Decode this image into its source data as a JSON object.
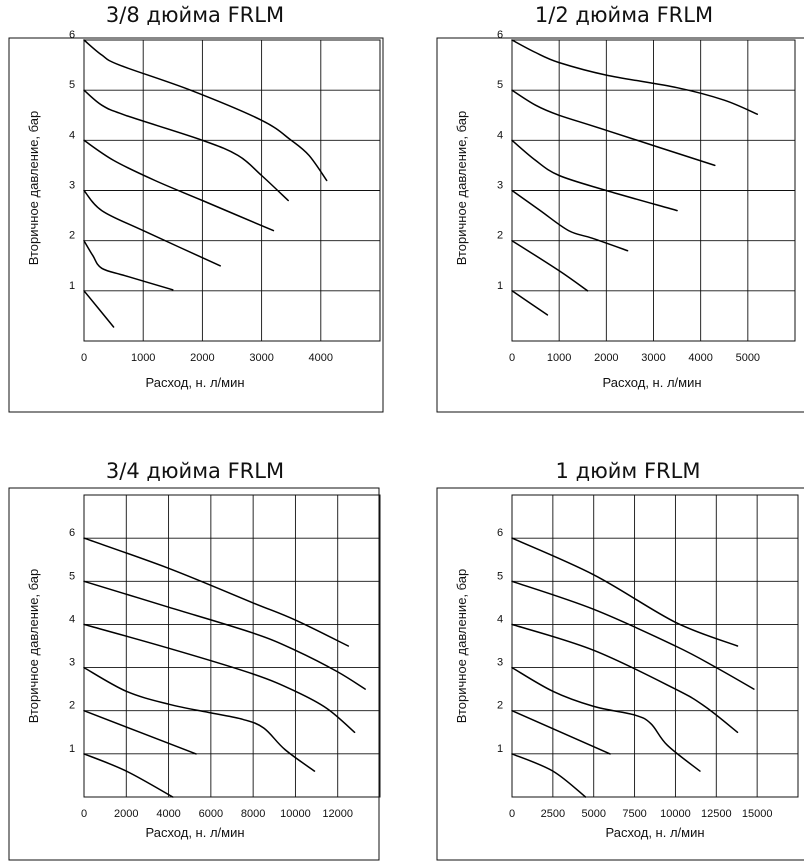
{
  "chart_data": [
    {
      "type": "line",
      "title": "3/8 дюйма FRLM",
      "xlabel": "Расход, н. л/мин",
      "ylabel": "Вторичное давление, бар",
      "xlim": [
        0,
        5000
      ],
      "ylim": [
        0,
        6
      ],
      "x_ticks": [
        0,
        1000,
        2000,
        3000,
        4000
      ],
      "y_ticks": [
        1,
        2,
        3,
        4,
        5,
        6
      ],
      "grid": true,
      "series": [
        {
          "points": [
            [
              0,
              1.0
            ],
            [
              500,
              0.28
            ]
          ]
        },
        {
          "points": [
            [
              0,
              2.0
            ],
            [
              150,
              1.7
            ],
            [
              300,
              1.45
            ],
            [
              700,
              1.3
            ],
            [
              1500,
              1.02
            ]
          ]
        },
        {
          "points": [
            [
              0,
              3.0
            ],
            [
              300,
              2.6
            ],
            [
              1000,
              2.2
            ],
            [
              2300,
              1.5
            ]
          ]
        },
        {
          "points": [
            [
              0,
              4.0
            ],
            [
              500,
              3.6
            ],
            [
              1200,
              3.2
            ],
            [
              2000,
              2.8
            ],
            [
              3200,
              2.2
            ]
          ]
        },
        {
          "points": [
            [
              0,
              5.0
            ],
            [
              300,
              4.7
            ],
            [
              700,
              4.5
            ],
            [
              2000,
              4.0
            ],
            [
              2600,
              3.7
            ],
            [
              3000,
              3.3
            ],
            [
              3450,
              2.8
            ]
          ]
        },
        {
          "points": [
            [
              0,
              6.0
            ],
            [
              300,
              5.7
            ],
            [
              600,
              5.5
            ],
            [
              1800,
              5.0
            ],
            [
              3000,
              4.4
            ],
            [
              3500,
              4.0
            ],
            [
              3800,
              3.7
            ],
            [
              4100,
              3.2
            ]
          ]
        }
      ]
    },
    {
      "type": "line",
      "title": "1/2 дюйма FRLM",
      "xlabel": "Расход, н. л/мин",
      "ylabel": "Вторичное давление, бар",
      "xlim": [
        0,
        6000
      ],
      "ylim": [
        0,
        6
      ],
      "x_ticks": [
        0,
        1000,
        2000,
        3000,
        4000,
        5000
      ],
      "y_ticks": [
        1,
        2,
        3,
        4,
        5,
        6
      ],
      "grid": true,
      "series": [
        {
          "points": [
            [
              0,
              1.0
            ],
            [
              750,
              0.52
            ]
          ]
        },
        {
          "points": [
            [
              0,
              2.0
            ],
            [
              1000,
              1.4
            ],
            [
              1600,
              1.0
            ]
          ]
        },
        {
          "points": [
            [
              0,
              3.0
            ],
            [
              600,
              2.6
            ],
            [
              1200,
              2.2
            ],
            [
              1700,
              2.05
            ],
            [
              2450,
              1.8
            ]
          ]
        },
        {
          "points": [
            [
              0,
              4.0
            ],
            [
              500,
              3.6
            ],
            [
              1000,
              3.3
            ],
            [
              2000,
              3.0
            ],
            [
              3500,
              2.6
            ]
          ]
        },
        {
          "points": [
            [
              0,
              5.0
            ],
            [
              500,
              4.7
            ],
            [
              1000,
              4.5
            ],
            [
              2000,
              4.2
            ],
            [
              4300,
              3.5
            ]
          ]
        },
        {
          "points": [
            [
              0,
              6.0
            ],
            [
              500,
              5.75
            ],
            [
              1000,
              5.55
            ],
            [
              2000,
              5.3
            ],
            [
              3500,
              5.05
            ],
            [
              4500,
              4.8
            ],
            [
              5200,
              4.52
            ]
          ]
        }
      ]
    },
    {
      "type": "line",
      "title": "3/4 дюйма FRLM",
      "xlabel": "Расход, н. л/мин",
      "ylabel": "Вторичное давление, бар",
      "xlim": [
        0,
        14000
      ],
      "ylim": [
        0,
        7
      ],
      "x_ticks": [
        0,
        2000,
        4000,
        6000,
        8000,
        10000,
        12000
      ],
      "y_ticks": [
        1,
        2,
        3,
        4,
        5,
        6
      ],
      "grid": true,
      "series": [
        {
          "points": [
            [
              0,
              1.0
            ],
            [
              2000,
              0.6
            ],
            [
              4200,
              0.0
            ]
          ]
        },
        {
          "points": [
            [
              0,
              2.0
            ],
            [
              5300,
              1.0
            ]
          ]
        },
        {
          "points": [
            [
              0,
              3.0
            ],
            [
              2000,
              2.45
            ],
            [
              4000,
              2.15
            ],
            [
              6000,
              1.95
            ],
            [
              7500,
              1.8
            ],
            [
              8500,
              1.6
            ],
            [
              9500,
              1.1
            ],
            [
              10900,
              0.6
            ]
          ]
        },
        {
          "points": [
            [
              0,
              4.0
            ],
            [
              4000,
              3.45
            ],
            [
              8000,
              2.85
            ],
            [
              10000,
              2.45
            ],
            [
              11500,
              2.05
            ],
            [
              12800,
              1.5
            ]
          ]
        },
        {
          "points": [
            [
              0,
              5.0
            ],
            [
              4000,
              4.4
            ],
            [
              8000,
              3.8
            ],
            [
              10000,
              3.4
            ],
            [
              12000,
              2.9
            ],
            [
              13300,
              2.5
            ]
          ]
        },
        {
          "points": [
            [
              0,
              6.0
            ],
            [
              4000,
              5.3
            ],
            [
              8000,
              4.5
            ],
            [
              10000,
              4.1
            ],
            [
              12500,
              3.5
            ]
          ]
        }
      ]
    },
    {
      "type": "line",
      "title": "1 дюйм FRLM",
      "xlabel": "Расход, н. л/мин",
      "ylabel": "Вторичное давление, бар",
      "xlim": [
        0,
        17500
      ],
      "ylim": [
        0,
        7
      ],
      "x_ticks": [
        0,
        2500,
        5000,
        7500,
        10000,
        12500,
        15000
      ],
      "y_ticks": [
        1,
        2,
        3,
        4,
        5,
        6
      ],
      "grid": true,
      "series": [
        {
          "points": [
            [
              0,
              1.0
            ],
            [
              2500,
              0.6
            ],
            [
              4500,
              0.0
            ]
          ]
        },
        {
          "points": [
            [
              0,
              2.0
            ],
            [
              6000,
              1.0
            ]
          ]
        },
        {
          "points": [
            [
              0,
              3.0
            ],
            [
              2500,
              2.45
            ],
            [
              5000,
              2.1
            ],
            [
              7500,
              1.9
            ],
            [
              8500,
              1.7
            ],
            [
              9500,
              1.2
            ],
            [
              11500,
              0.6
            ]
          ]
        },
        {
          "points": [
            [
              0,
              4.0
            ],
            [
              5000,
              3.4
            ],
            [
              10000,
              2.5
            ],
            [
              11800,
              2.1
            ],
            [
              13800,
              1.5
            ]
          ]
        },
        {
          "points": [
            [
              0,
              5.0
            ],
            [
              5000,
              4.35
            ],
            [
              10000,
              3.5
            ],
            [
              12500,
              3.0
            ],
            [
              14800,
              2.5
            ]
          ]
        },
        {
          "points": [
            [
              0,
              6.0
            ],
            [
              5000,
              5.15
            ],
            [
              10000,
              4.05
            ],
            [
              13800,
              3.5
            ]
          ]
        }
      ]
    }
  ]
}
